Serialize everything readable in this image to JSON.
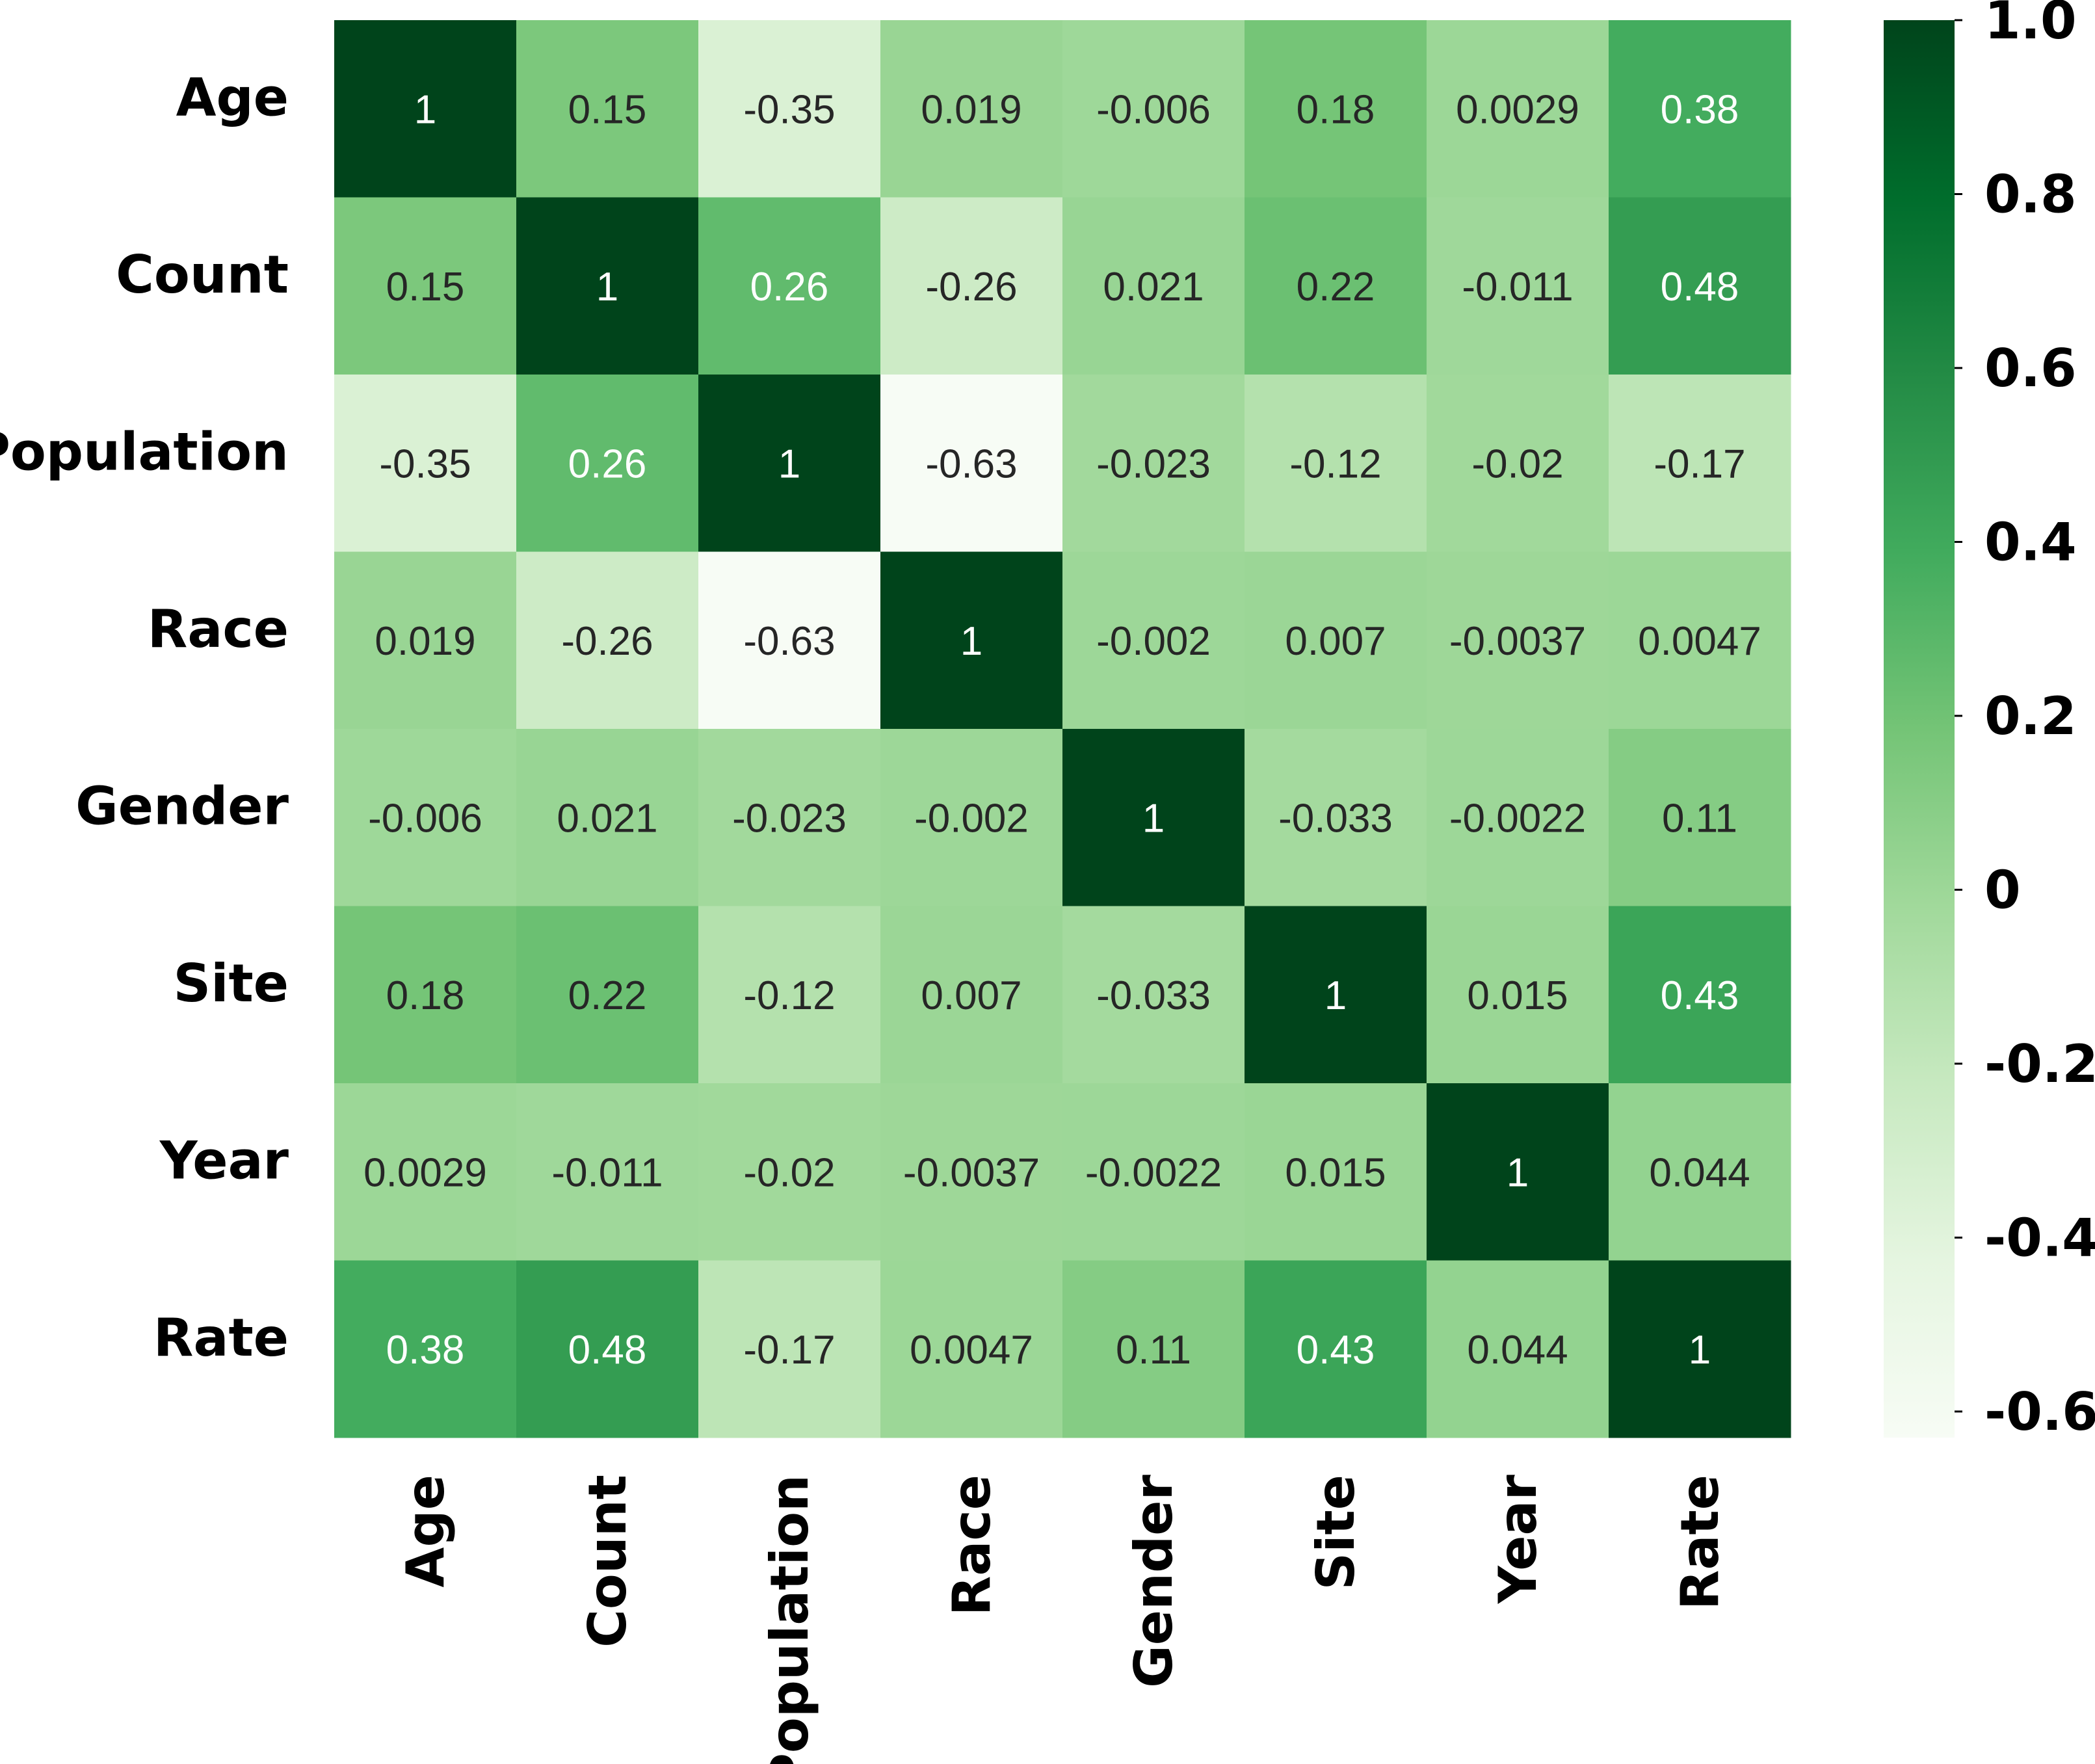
{
  "chart_data": {
    "type": "heatmap",
    "title": "",
    "xlabel": "",
    "ylabel": "",
    "x_labels": [
      "Age",
      "Count",
      "Population",
      "Race",
      "Gender",
      "Site",
      "Year",
      "Rate"
    ],
    "y_labels": [
      "Age",
      "Count",
      "Population",
      "Race",
      "Gender",
      "Site",
      "Year",
      "Rate"
    ],
    "values": [
      [
        "1",
        "0.15",
        "-0.35",
        "0.019",
        "-0.006",
        "0.18",
        "0.0029",
        "0.38"
      ],
      [
        "0.15",
        "1",
        "0.26",
        "-0.26",
        "0.021",
        "0.22",
        "-0.011",
        "0.48"
      ],
      [
        "-0.35",
        "0.26",
        "1",
        "-0.63",
        "-0.023",
        "-0.12",
        "-0.02",
        "-0.17"
      ],
      [
        "0.019",
        "-0.26",
        "-0.63",
        "1",
        "-0.002",
        "0.007",
        "-0.0037",
        "0.0047"
      ],
      [
        "-0.006",
        "0.021",
        "-0.023",
        "-0.002",
        "1",
        "-0.033",
        "-0.0022",
        "0.11"
      ],
      [
        "0.18",
        "0.22",
        "-0.12",
        "0.007",
        "-0.033",
        "1",
        "0.015",
        "0.43"
      ],
      [
        "0.0029",
        "-0.011",
        "-0.02",
        "-0.0037",
        "-0.0022",
        "0.015",
        "1",
        "0.044"
      ],
      [
        "0.38",
        "0.48",
        "-0.17",
        "0.0047",
        "0.11",
        "0.43",
        "0.044",
        "1"
      ]
    ],
    "colormap": "Greens",
    "colormap_stops": [
      "#f7fcf5",
      "#e5f5e0",
      "#c7e9c0",
      "#a1d99b",
      "#74c476",
      "#41ab5d",
      "#238b45",
      "#006d2c",
      "#00441b"
    ],
    "vmin": -0.63,
    "vmax": 1.0,
    "colorbar": {
      "position": "right",
      "ticks": [
        1.0,
        0.8,
        0.6,
        0.4,
        0.2,
        0,
        -0.2,
        -0.4,
        -0.6
      ],
      "tick_labels": [
        "1.0",
        "0.8",
        "0.6",
        "0.4",
        "0.2",
        "0",
        "-0.2",
        "-0.4",
        "-0.6"
      ]
    },
    "annotations": true,
    "grid": false
  }
}
